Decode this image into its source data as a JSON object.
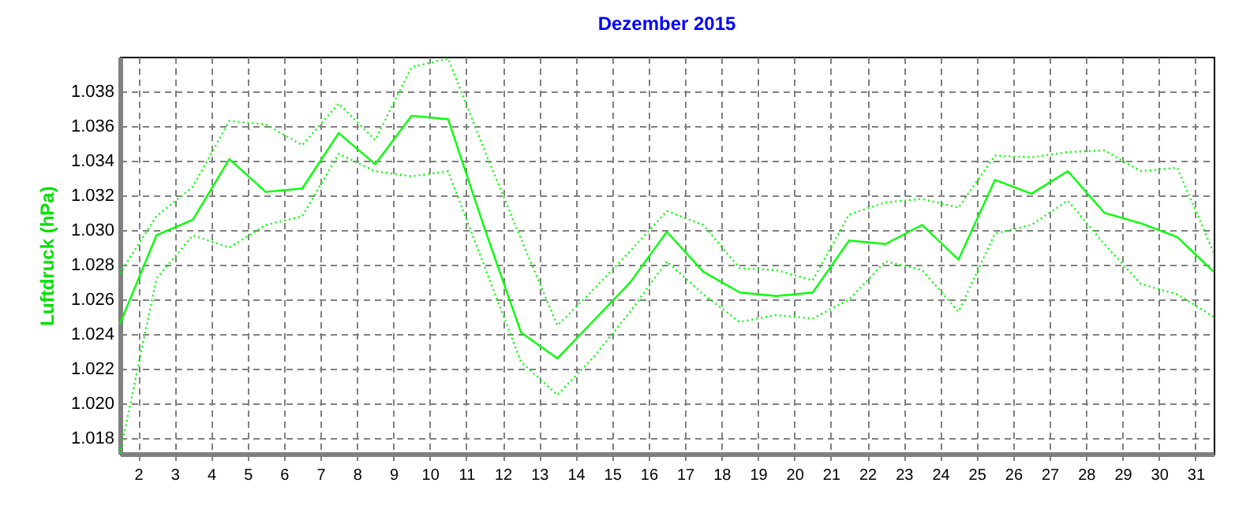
{
  "chart_data": {
    "type": "line",
    "title": "Dezember 2015",
    "ylabel": "Luftdruck (hPa)",
    "x": [
      1.5,
      2.5,
      3.5,
      4.5,
      5.5,
      6.5,
      7.5,
      8.5,
      9.5,
      10.5,
      11.5,
      12.5,
      13.5,
      14.5,
      15.5,
      16.5,
      17.5,
      18.5,
      19.5,
      20.5,
      21.5,
      22.5,
      23.5,
      24.5,
      25.5,
      26.5,
      27.5,
      28.5,
      29.5,
      30.5,
      31.5
    ],
    "series": [
      {
        "color": "#00ff00",
        "line_style": "dotted",
        "values": [
          1.0275,
          1.0308,
          1.0325,
          1.0363,
          1.0361,
          1.0349,
          1.0373,
          1.0352,
          1.0394,
          1.0399,
          1.0346,
          1.0295,
          1.0245,
          1.0266,
          1.0288,
          1.0311,
          1.0303,
          1.0278,
          1.0277,
          1.0271,
          1.0309,
          1.0316,
          1.0318,
          1.0313,
          1.0343,
          1.0342,
          1.0345,
          1.0346,
          1.0334,
          1.0336,
          1.0287
        ]
      },
      {
        "color": "#00ff00",
        "line_style": "solid",
        "values": [
          1.0246,
          1.0297,
          1.0306,
          1.0341,
          1.0322,
          1.0324,
          1.0356,
          1.0338,
          1.0366,
          1.0364,
          1.0301,
          1.0241,
          1.0226,
          1.0248,
          1.027,
          1.0299,
          1.0276,
          1.0264,
          1.0262,
          1.0264,
          1.0294,
          1.0292,
          1.0303,
          1.0283,
          1.0329,
          1.0321,
          1.0334,
          1.031,
          1.0304,
          1.0296,
          1.0276
        ]
      },
      {
        "color": "#00ff00",
        "line_style": "dotted",
        "values": [
          1.0171,
          1.0272,
          1.0297,
          1.029,
          1.0303,
          1.0308,
          1.0344,
          1.0334,
          1.0331,
          1.0334,
          1.0279,
          1.0224,
          1.0205,
          1.0227,
          1.0253,
          1.0282,
          1.0263,
          1.0247,
          1.0251,
          1.0249,
          1.026,
          1.0282,
          1.0277,
          1.0253,
          1.0298,
          1.0303,
          1.0317,
          1.0292,
          1.0269,
          1.0263,
          1.025
        ]
      }
    ],
    "xlim": [
      1.5,
      31.5
    ],
    "xticks": [
      2,
      3,
      4,
      5,
      6,
      7,
      8,
      9,
      10,
      11,
      12,
      13,
      14,
      15,
      16,
      17,
      18,
      19,
      20,
      21,
      22,
      23,
      24,
      25,
      26,
      27,
      28,
      29,
      30,
      31
    ],
    "ylim": [
      1.0171,
      1.04
    ],
    "yticks": [
      1.018,
      {
        "value": 1.02,
        "label": "1.020"
      },
      1.022,
      1.024,
      1.026,
      1.028,
      {
        "value": 1.03,
        "label": "1.030"
      },
      1.032,
      1.034,
      1.036,
      1.038
    ],
    "grid": true
  }
}
